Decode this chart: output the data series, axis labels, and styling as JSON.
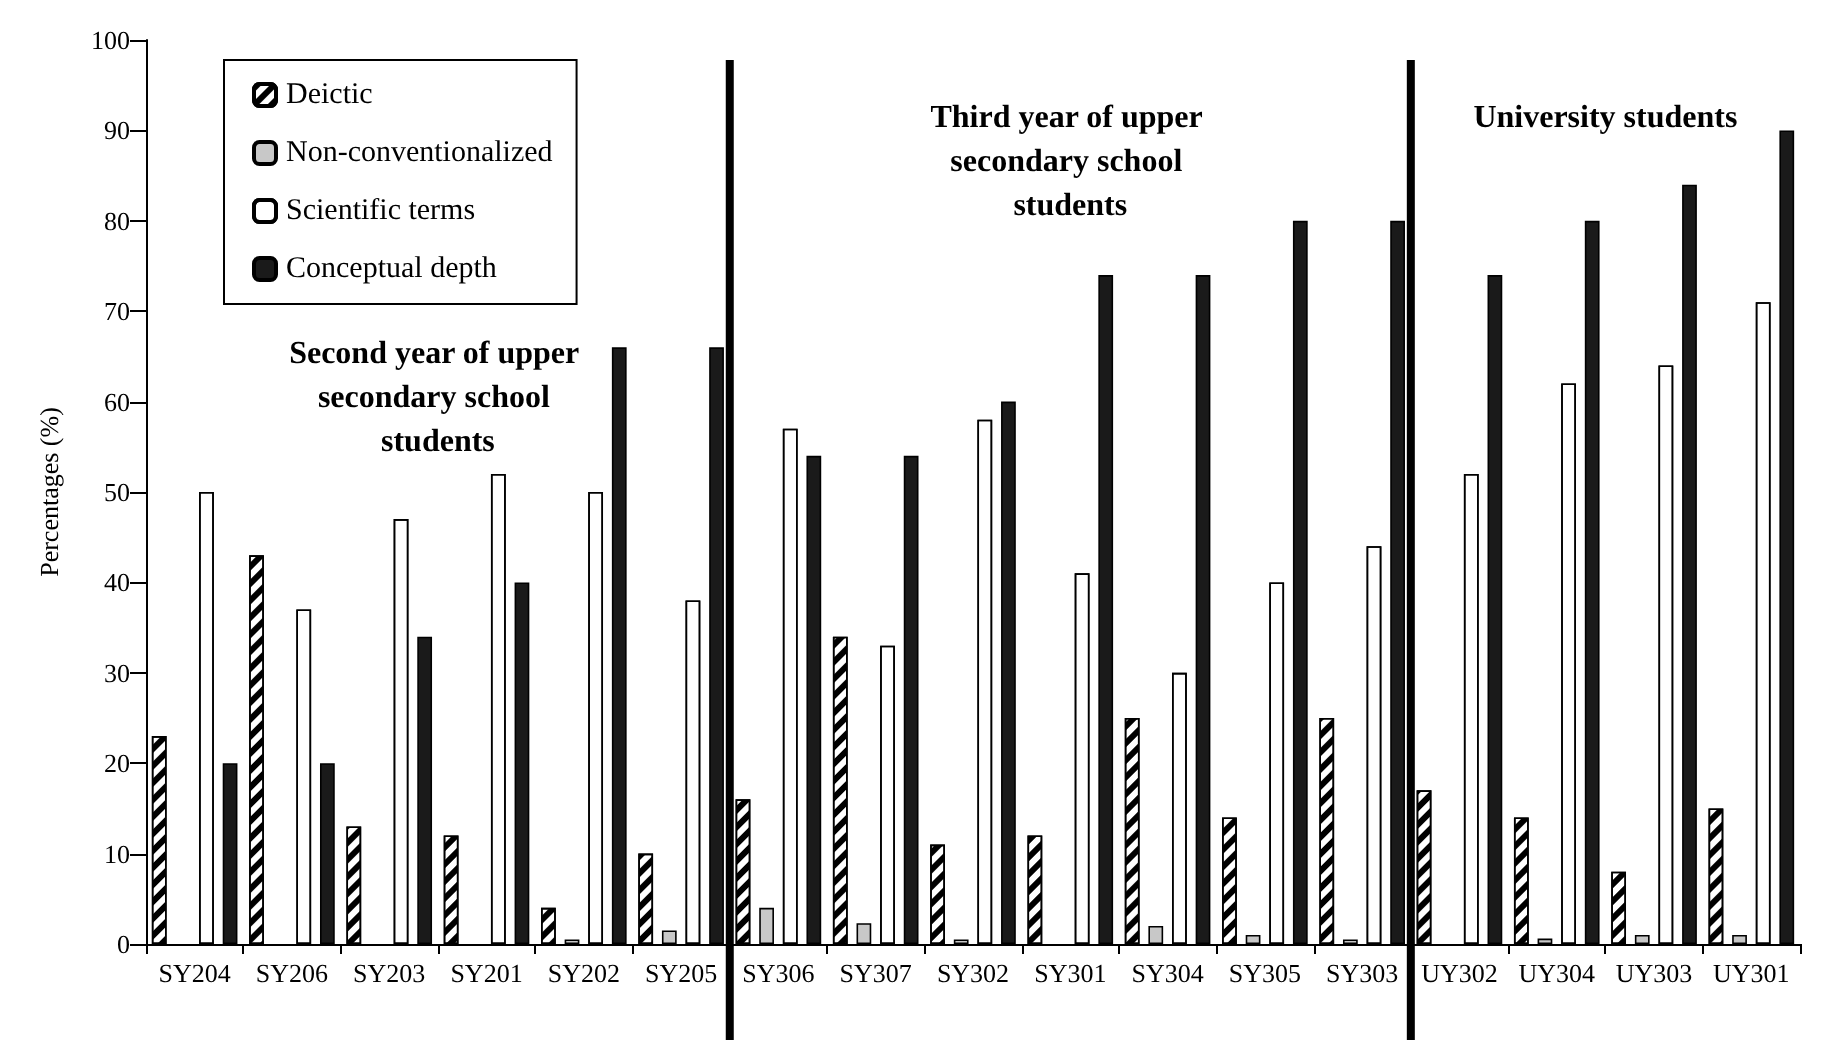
{
  "chart_data": {
    "type": "bar",
    "ylabel": "Percentages (%)",
    "categories": [
      "SY204",
      "SY206",
      "SY203",
      "SY201",
      "SY202",
      "SY205",
      "SY306",
      "SY307",
      "SY302",
      "SY301",
      "SY304",
      "SY305",
      "SY303",
      "UY302",
      "UY304",
      "UY303",
      "UY301"
    ],
    "series": [
      {
        "name": "Deictic",
        "color": "#ffffff",
        "values": [
          23,
          43,
          13,
          12,
          4,
          10,
          16,
          34,
          11,
          12,
          25,
          14,
          25,
          17,
          14,
          8,
          15
        ]
      },
      {
        "name": "Non-conventionalized",
        "color": "#c8c8c8",
        "values": [
          0,
          0,
          0,
          0,
          0.5,
          1.5,
          4,
          2.3,
          0.5,
          0,
          2,
          1,
          0.5,
          0,
          0.6,
          1,
          1
        ]
      },
      {
        "name": "Scientific terms",
        "color": "#ffffff",
        "values": [
          50,
          37,
          47,
          52,
          50,
          38,
          57,
          33,
          58,
          41,
          30,
          40,
          44,
          52,
          62,
          64,
          71
        ]
      },
      {
        "name": "Conceptual depth",
        "color": "#1a1a1a",
        "values": [
          20,
          20,
          34,
          40,
          66,
          66,
          54,
          54,
          60,
          74,
          74,
          80,
          80,
          74,
          80,
          84,
          90
        ]
      }
    ],
    "ylim": [
      0,
      100
    ],
    "yticks": [
      0,
      10,
      20,
      30,
      40,
      50,
      60,
      70,
      80,
      90,
      100
    ],
    "grid": false,
    "legend": "top left",
    "annotations": [
      "Second year of upper secondary school students",
      "Third year of upper secondary school students",
      "University students"
    ]
  }
}
